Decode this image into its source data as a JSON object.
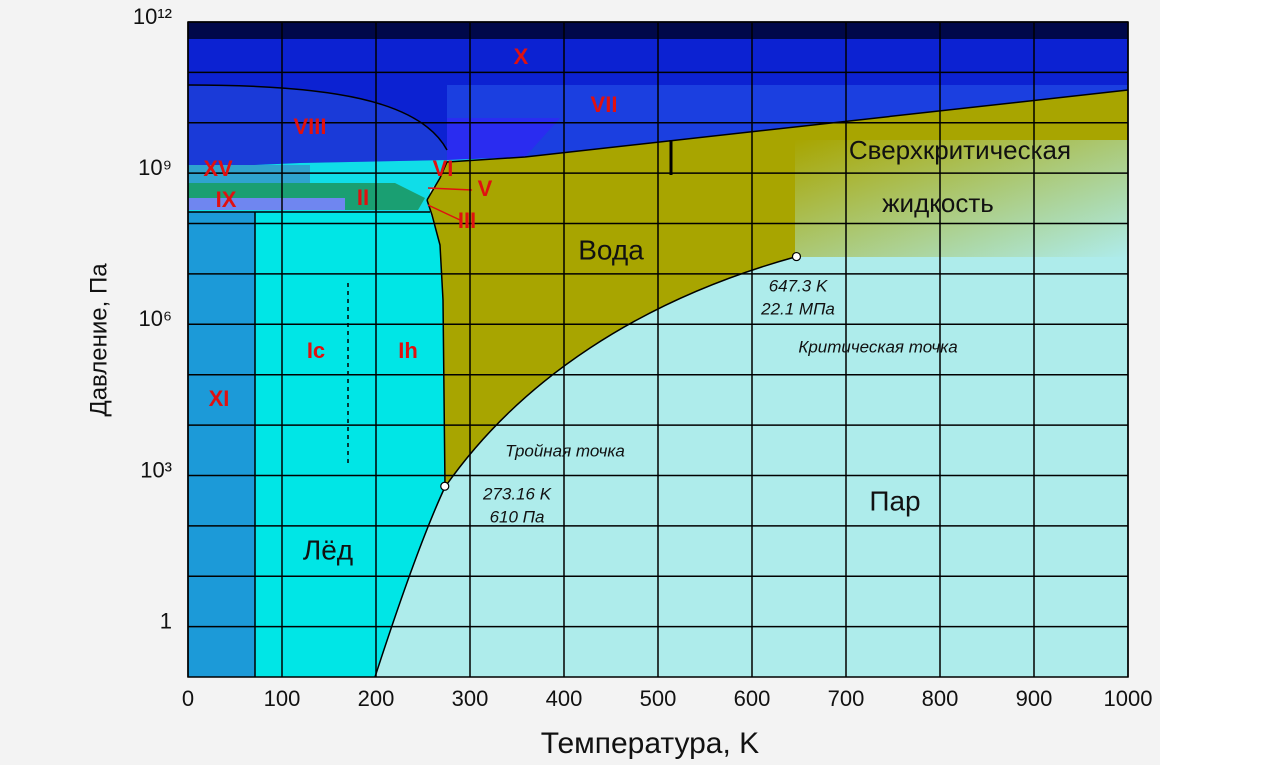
{
  "chart_data": {
    "type": "phase",
    "x_label": "Температура, K",
    "y_label": "Давление, Па",
    "xlim": [
      0,
      1000
    ],
    "xticks": [
      0,
      100,
      200,
      300,
      400,
      500,
      600,
      700,
      800,
      900,
      1000
    ],
    "ylim": [
      0.1,
      1000000000000
    ],
    "yscale": "log",
    "yticks": [
      1,
      {
        "value": 1000,
        "label": "10³"
      },
      {
        "value": 1000000,
        "label": "10⁶"
      },
      {
        "value": 1000000000,
        "label": "10⁹"
      },
      {
        "value": 1000000000000,
        "label": "10¹²"
      }
    ],
    "y_minor_ticks": [
      10,
      100,
      10000,
      100000,
      10000000,
      100000000,
      10000000000,
      100000000000
    ],
    "grid": true,
    "phase_labels": [
      "X",
      "VII",
      "VIII",
      "XV",
      "VI",
      "V",
      "IX",
      "II",
      "III",
      "Ic",
      "Ih",
      "XI"
    ],
    "region_labels": [
      "Вода",
      "Сверхкритическая",
      "жидкость",
      "Лёд",
      "Пар"
    ],
    "points": [
      {
        "name": "Тройная точка",
        "x": 273.16,
        "y": 610,
        "labels": [
          "273.16 K",
          "610 Па"
        ]
      },
      {
        "name": "Критическая точка",
        "x": 647.3,
        "y": 22100000,
        "labels": [
          "647.3 K",
          "22.1 МПа"
        ]
      }
    ]
  }
}
